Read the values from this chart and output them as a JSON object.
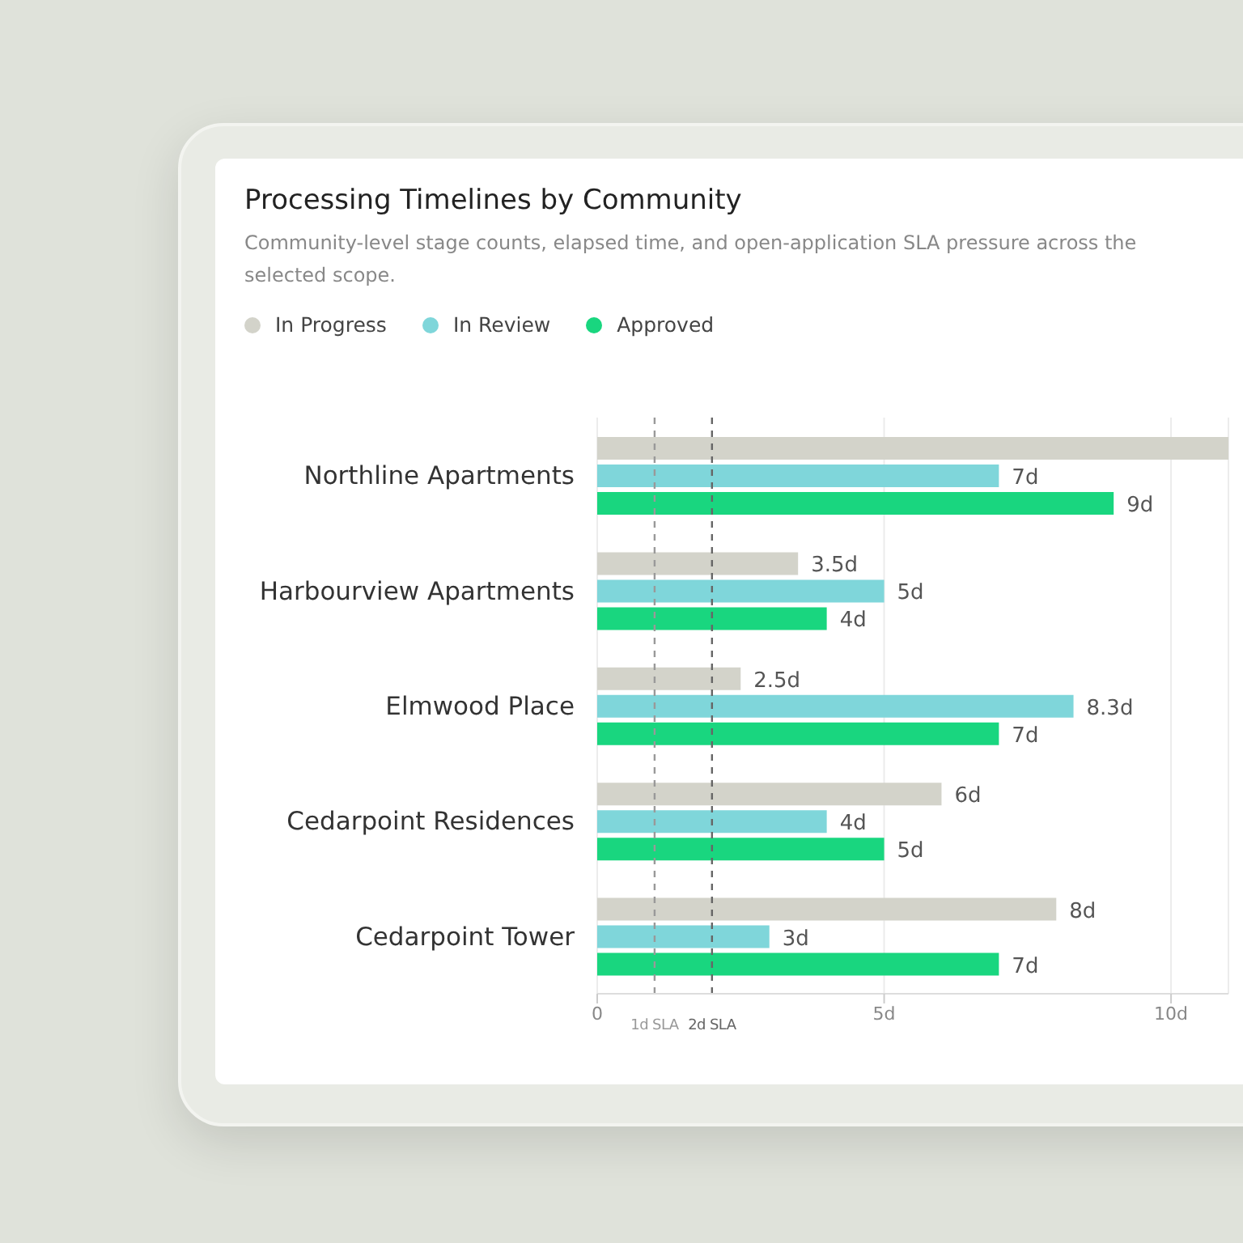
{
  "chart_data": {
    "type": "bar",
    "orientation": "horizontal",
    "title": "Processing Timelines by Community",
    "subtitle": "Community-level stage counts, elapsed time, and open-application SLA pressure across the selected scope.",
    "categories": [
      "Northline Apartments",
      "Harbourview Apartments",
      "Elmwood Place",
      "Cedarpoint Residences",
      "Cedarpoint Tower"
    ],
    "series": [
      {
        "name": "In Progress",
        "color": "#d3d3ca",
        "values": [
          11,
          3.5,
          2.5,
          6,
          8
        ],
        "value_labels": [
          null,
          "3.5d",
          "2.5d",
          "6d",
          "8d"
        ]
      },
      {
        "name": "In Review",
        "color": "#7fd6da",
        "values": [
          7,
          5,
          8.3,
          4,
          3
        ],
        "value_labels": [
          "7d",
          "5d",
          "8.3d",
          "4d",
          "3d"
        ]
      },
      {
        "name": "Approved",
        "color": "#19d67f",
        "values": [
          9,
          4,
          7,
          5,
          7
        ],
        "value_labels": [
          "9d",
          "4d",
          "7d",
          "5d",
          "7d"
        ]
      }
    ],
    "xlim": [
      0,
      11
    ],
    "xticks": [
      0,
      {
        "value": 5,
        "label": "5d"
      },
      {
        "value": 10,
        "label": "10d"
      }
    ],
    "ref_lines": [
      {
        "axis": "x",
        "value": 1,
        "label": "1d SLA",
        "color": "#999999",
        "line_style": "dashed"
      },
      {
        "axis": "x",
        "value": 2,
        "label": "2d SLA",
        "color": "#666666",
        "line_style": "dashed"
      }
    ],
    "grid": "x",
    "legend": "top left"
  }
}
